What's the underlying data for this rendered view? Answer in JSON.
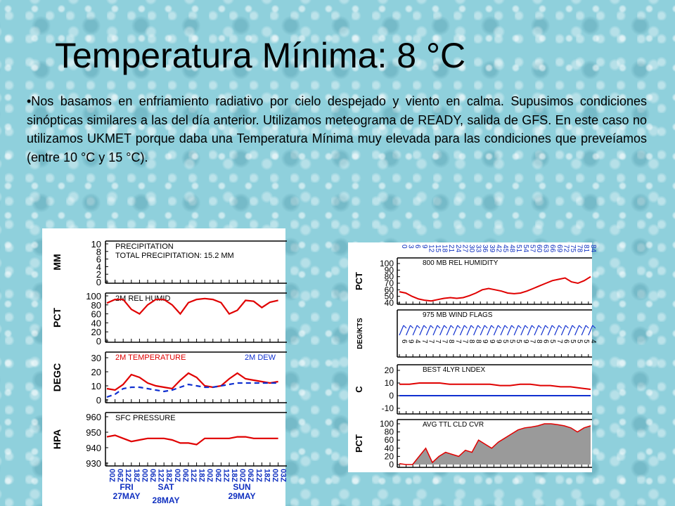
{
  "slide": {
    "title": "Temperatura Mínima: 8 °C",
    "bullet": "•Nos basamos en enfriamiento radiativo por cielo despejado y viento en calma. Supusimos condiciones sinópticas similares a las del día anterior. Utilizamos meteograma de READY, salida de GFS. En este caso no utilizamos UKMET porque daba una Temperatura Mínima muy elevada para las condiciones que preveíamos (entre 10 °C y 15 °C)."
  },
  "chart_data": [
    {
      "type": "line",
      "panel": "left-meteogram",
      "x_tick_labels": [
        "00Z",
        "06Z",
        "12Z",
        "18Z",
        "00Z",
        "06Z",
        "12Z",
        "18Z",
        "00Z",
        "06Z",
        "12Z",
        "18Z",
        "00Z",
        "06Z",
        "12Z",
        "18Z",
        "00Z",
        "06Z",
        "12Z",
        "18Z",
        "00Z",
        "03Z"
      ],
      "day_labels": [
        {
          "day": "FRI",
          "date": "27MAY"
        },
        {
          "day": "SAT",
          "date": "28MAY"
        },
        {
          "day": "SUN",
          "date": "29MAY"
        }
      ],
      "panels": [
        {
          "id": "precip",
          "ylabel": "MM",
          "title": "PRECIPITATION",
          "subtitle": "TOTAL PRECIPITATION:  15.2 MM",
          "ylim": [
            0,
            10
          ],
          "ticks": [
            "10",
            "8",
            "6",
            "4",
            "2",
            "0"
          ],
          "tick_values": [
            10,
            8,
            6,
            4,
            2,
            0
          ],
          "series": []
        },
        {
          "id": "humid",
          "ylabel": "PCT",
          "title": "2M REL HUMID",
          "ylim": [
            0,
            100
          ],
          "ticks": [
            "100",
            "80",
            "60",
            "40",
            "20",
            "0"
          ],
          "tick_values": [
            100,
            80,
            60,
            40,
            20,
            0
          ],
          "series": [
            {
              "color": "#e00000",
              "dashed": false,
              "values": [
                84,
                92,
                92,
                70,
                60,
                80,
                92,
                92,
                80,
                60,
                85,
                92,
                94,
                92,
                85,
                60,
                68,
                90,
                88,
                74,
                86,
                90
              ]
            }
          ]
        },
        {
          "id": "temp",
          "ylabel": "DEGC",
          "title": "2M TEMPERATURE",
          "title_color": "#e00000",
          "legend2": "2M  DEW",
          "legend2_color": "#1030d0",
          "ylim": [
            0,
            30
          ],
          "ticks": [
            "30",
            "20",
            "10",
            "0"
          ],
          "tick_values": [
            30,
            20,
            10,
            0
          ],
          "series": [
            {
              "color": "#e00000",
              "dashed": false,
              "values": [
                8,
                7,
                11,
                18,
                16,
                12,
                10,
                9,
                8,
                14,
                19,
                16,
                10,
                9,
                10,
                15,
                19,
                15,
                14,
                13,
                12,
                13
              ]
            },
            {
              "color": "#1030d0",
              "dashed": true,
              "values": [
                2,
                4,
                8,
                9,
                9,
                8,
                7,
                6,
                7,
                9,
                11,
                10,
                9,
                9,
                10,
                11,
                12,
                12,
                12,
                12,
                12,
                12
              ]
            }
          ]
        },
        {
          "id": "pressure",
          "ylabel": "HPA",
          "title": "SFC PRESSURE",
          "ylim": [
            930,
            960
          ],
          "ticks": [
            "960",
            "950",
            "940",
            "930"
          ],
          "tick_values": [
            960,
            950,
            940,
            930
          ],
          "series": [
            {
              "color": "#e00000",
              "dashed": false,
              "values": [
                947,
                948,
                946,
                944,
                945,
                946,
                946,
                946,
                945,
                943,
                943,
                942,
                946,
                946,
                946,
                946,
                947,
                947,
                946,
                946,
                946,
                946
              ]
            }
          ]
        }
      ]
    },
    {
      "type": "line",
      "panel": "right-meteogram",
      "x_tick_labels": [
        "0",
        "3",
        "6",
        "9",
        "12",
        "15",
        "18",
        "21",
        "24",
        "27",
        "30",
        "33",
        "36",
        "39",
        "42",
        "45",
        "48",
        "51",
        "54",
        "57",
        "60",
        "63",
        "66",
        "69",
        "72",
        "75",
        "78",
        "81",
        "84"
      ],
      "panels": [
        {
          "id": "rh800",
          "ylabel": "PCT",
          "title": "800 MB  REL HUMIDITY",
          "ylim": [
            40,
            100
          ],
          "ticks": [
            "100",
            "90",
            "80",
            "70",
            "60",
            "50",
            "40"
          ],
          "tick_values": [
            100,
            90,
            80,
            70,
            60,
            50,
            40
          ],
          "series": [
            {
              "color": "#e00000",
              "filled": false,
              "values": [
                57,
                55,
                50,
                46,
                44,
                43,
                45,
                47,
                48,
                47,
                48,
                51,
                55,
                60,
                62,
                60,
                58,
                55,
                54,
                55,
                58,
                62,
                66,
                70,
                74,
                76,
                78,
                72,
                70,
                74,
                80
              ]
            }
          ]
        },
        {
          "id": "wind975",
          "ylabel": "DEG/KTS",
          "title": "975 MB  WIND FLAGS",
          "wind_speed_labels": [
            "6",
            "9",
            "4",
            "7",
            "7",
            "7",
            "7",
            "8",
            "7",
            "7",
            "8",
            "8",
            "9",
            "9",
            "9",
            "5",
            "5",
            "5",
            "9",
            "7",
            "8",
            "6",
            "5",
            "7",
            "6",
            "5",
            "5",
            "5",
            "4"
          ]
        },
        {
          "id": "li",
          "ylabel": "C",
          "title": "BEST 4LYR LNDEX",
          "ylim": [
            -10,
            20
          ],
          "ticks": [
            "20",
            "10",
            "0",
            "-10"
          ],
          "tick_values": [
            20,
            10,
            0,
            -10
          ],
          "series": [
            {
              "color": "#e00000",
              "filled": false,
              "values": [
                9,
                9,
                10,
                10,
                10,
                9,
                9,
                9,
                9,
                9,
                8,
                8,
                9,
                9,
                8,
                8,
                7,
                7,
                6,
                5
              ]
            },
            {
              "color": "#1030d0",
              "filled": false,
              "values": [
                0,
                0,
                0,
                0,
                0,
                0,
                0,
                0,
                0,
                0,
                0,
                0,
                0,
                0,
                0,
                0,
                0,
                0,
                0,
                0
              ]
            }
          ]
        },
        {
          "id": "cloud",
          "ylabel": "PCT",
          "title": "AVG TTL CLD CVR",
          "ylim": [
            0,
            100
          ],
          "ticks": [
            "100",
            "80",
            "60",
            "40",
            "20",
            "0"
          ],
          "tick_values": [
            100,
            80,
            60,
            40,
            20,
            0
          ],
          "series": [
            {
              "color": "#e00000",
              "filled": true,
              "values": [
                2,
                0,
                0,
                20,
                40,
                5,
                20,
                30,
                25,
                20,
                35,
                30,
                60,
                50,
                40,
                55,
                65,
                75,
                85,
                90,
                92,
                95,
                100,
                100,
                98,
                95,
                90,
                80,
                90,
                95
              ]
            }
          ]
        }
      ]
    }
  ]
}
